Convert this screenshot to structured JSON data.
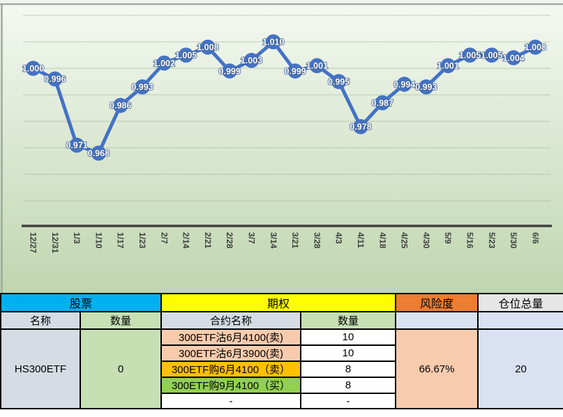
{
  "chart_data": {
    "type": "line",
    "title": "",
    "x": [
      "12/27",
      "12/31",
      "1/3",
      "1/10",
      "1/17",
      "1/23",
      "2/7",
      "2/14",
      "2/21",
      "2/28",
      "3/7",
      "3/14",
      "3/21",
      "3/28",
      "4/3",
      "4/11",
      "4/18",
      "4/25",
      "4/30",
      "5/9",
      "5/16",
      "5/23",
      "5/30",
      "6/6"
    ],
    "values": [
      1.0,
      0.996,
      0.971,
      0.968,
      0.986,
      0.993,
      1.002,
      1.005,
      1.008,
      0.999,
      1.003,
      1.01,
      0.999,
      1.001,
      0.995,
      0.978,
      0.987,
      0.994,
      0.993,
      1.001,
      1.005,
      1.005,
      1.004,
      1.008
    ],
    "xlabel": "",
    "ylabel": "",
    "ylim": [
      0.94,
      1.02
    ],
    "grid_step": 0.01,
    "grid": true,
    "legend_position": "none",
    "data_labels": true,
    "colors": {
      "series": "#4472C4",
      "data_label_text": "#FFFFFF",
      "data_label_outline": "#3A5A8C",
      "axis_line": "#404040",
      "axis_tick_text": "#3F3F3F",
      "gridline": "#A9BA9E",
      "plot_bg_top": "#F4F8F1",
      "plot_bg_bottom": "#BFD6AF",
      "frame_border": "#A6A6A6"
    }
  },
  "table": {
    "group_headers": [
      {
        "label": "股票",
        "bg": "#00B0F0"
      },
      {
        "label": "期权",
        "bg": "#FFFF00"
      },
      {
        "label": "风险度",
        "bg": "#ED7D31"
      },
      {
        "label": "仓位总量",
        "bg": "#E7E6E6"
      }
    ],
    "sub_headers": {
      "stock_name": {
        "label": "名称",
        "bg": "#D6DCE4"
      },
      "stock_qty": {
        "label": "数量",
        "bg": "#C6E0B4"
      },
      "contract_name": {
        "label": "合约名称",
        "bg": "#D6DCE4"
      },
      "contract_qty": {
        "label": "数量",
        "bg": "#C6E0B4"
      },
      "risk_blank": {
        "label": "",
        "bg": "#D9E1F2"
      },
      "total_blank": {
        "label": "",
        "bg": "#D9E1F2"
      }
    },
    "stock": {
      "name": "HS300ETF",
      "name_bg": "#D6DCE4",
      "quantity": "0",
      "quantity_bg": "#C6E0B4"
    },
    "contracts": [
      {
        "name": "300ETF沽6月4100(卖)",
        "qty": "10",
        "bg": "#F8CBAD",
        "qty_bg": "#FFFFFF"
      },
      {
        "name": "300ETF沽6月3900(卖)",
        "qty": "10",
        "bg": "#F8CBAD",
        "qty_bg": "#FFFFFF"
      },
      {
        "name": "300ETF购6月4100（卖）",
        "qty": "8",
        "bg": "#FFC000",
        "qty_bg": "#FFFFFF"
      },
      {
        "name": "300ETF购9月4100（买）",
        "qty": "8",
        "bg": "#92D050",
        "qty_bg": "#FFFFFF"
      },
      {
        "name": "-",
        "qty": "-",
        "bg": "#FFFFFF",
        "qty_bg": "#FFFFFF"
      }
    ],
    "risk": {
      "value": "66.67%",
      "bg": "#F8CBAD"
    },
    "total": {
      "value": "20",
      "bg": "#D9E1F2"
    }
  }
}
